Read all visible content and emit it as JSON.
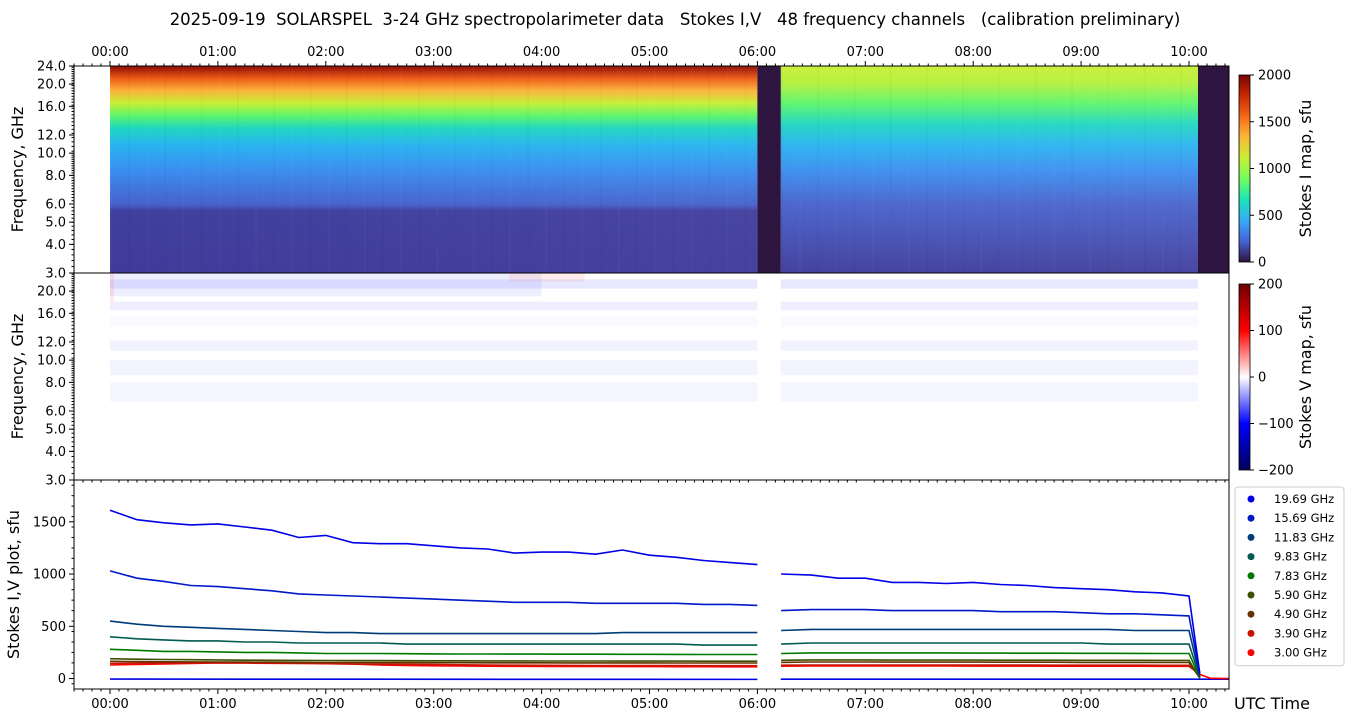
{
  "title": "2025-09-19  SOLARSPEL  3-24 GHz spectropolarimeter data   Stokes I,V   48 frequency channels   (calibration preliminary)",
  "x_axis_label": "UTC Time",
  "time_ticks": [
    "00:00",
    "01:00",
    "02:00",
    "03:00",
    "04:00",
    "05:00",
    "06:00",
    "07:00",
    "08:00",
    "09:00",
    "10:00"
  ],
  "palette": {
    "turbo": [
      "#30123b",
      "#4662d7",
      "#36aaf9",
      "#1ae4b6",
      "#72fe5e",
      "#c7ef34",
      "#fbb938",
      "#f56918",
      "#c92903",
      "#7a0403"
    ],
    "bwr": [
      "#00005a",
      "#0000ff",
      "#ffffff",
      "#ff0000",
      "#6e0000"
    ]
  },
  "chart_data": [
    {
      "type": "heatmap",
      "name": "Stokes I map",
      "ylabel": "Frequency, GHz",
      "xlim": [
        "23:40",
        "10:20"
      ],
      "ylim": [
        3.0,
        24.0
      ],
      "y_scale": "log",
      "y_ticks": [
        "3.0",
        "4.0",
        "5.0",
        "6.0",
        "8.0",
        "10.0",
        "12.0",
        "16.0",
        "20.0",
        "24.0"
      ],
      "colorbar": {
        "label": "Stokes I map, sfu",
        "range": [
          0,
          2000
        ],
        "ticks": [
          "0",
          "500",
          "1000",
          "1500",
          "2000"
        ],
        "colormap": "turbo"
      },
      "data_start": "00:00",
      "data_gaps": [
        [
          "06:00",
          "06:13"
        ],
        [
          "10:05",
          "10:20"
        ]
      ]
    },
    {
      "type": "heatmap",
      "name": "Stokes V map",
      "ylabel": "Frequency, GHz",
      "ylim": [
        3.0,
        24.0
      ],
      "y_scale": "log",
      "y_ticks": [
        "3.0",
        "4.0",
        "5.0",
        "6.0",
        "8.0",
        "10.0",
        "12.0",
        "16.0",
        "20.0"
      ],
      "colorbar": {
        "label": "Stokes V map, sfu",
        "range": [
          -200,
          200
        ],
        "ticks": [
          "−200",
          "−100",
          "0",
          "100",
          "200"
        ],
        "colormap": "bwr"
      }
    },
    {
      "type": "line",
      "name": "Stokes I,V plot",
      "ylabel": "Stokes I,V plot, sfu",
      "ylim": [
        -100,
        1900
      ],
      "y_ticks": [
        "0",
        "500",
        "1000",
        "1500"
      ],
      "legend": "right",
      "x_hours": [
        0.0,
        0.25,
        0.5,
        0.75,
        1.0,
        1.25,
        1.5,
        1.75,
        2.0,
        2.25,
        2.5,
        2.75,
        3.0,
        3.25,
        3.5,
        3.75,
        4.0,
        4.25,
        4.5,
        4.75,
        5.0,
        5.25,
        5.5,
        5.75,
        6.0,
        6.22,
        6.5,
        6.75,
        7.0,
        7.25,
        7.5,
        7.75,
        8.0,
        8.25,
        8.5,
        8.75,
        9.0,
        9.25,
        9.5,
        9.75,
        10.0,
        10.1
      ],
      "series": [
        {
          "name": "19.69 GHz",
          "color": "#0000e8",
          "values": [
            1610,
            1520,
            1490,
            1470,
            1480,
            1450,
            1420,
            1350,
            1370,
            1300,
            1290,
            1290,
            1270,
            1250,
            1240,
            1200,
            1210,
            1210,
            1190,
            1230,
            1180,
            1160,
            1130,
            1110,
            1090,
            1000,
            990,
            960,
            960,
            920,
            920,
            910,
            920,
            900,
            890,
            870,
            860,
            850,
            830,
            820,
            790,
            50
          ]
        },
        {
          "name": "15.69 GHz",
          "color": "#0019c8",
          "values": [
            1030,
            960,
            930,
            890,
            880,
            860,
            840,
            810,
            800,
            790,
            780,
            770,
            760,
            750,
            740,
            730,
            730,
            730,
            720,
            720,
            720,
            720,
            710,
            710,
            700,
            650,
            660,
            660,
            660,
            650,
            650,
            650,
            650,
            640,
            640,
            640,
            630,
            620,
            620,
            610,
            600,
            40
          ]
        },
        {
          "name": "11.83 GHz",
          "color": "#003c78",
          "values": [
            550,
            520,
            500,
            490,
            480,
            470,
            460,
            450,
            440,
            440,
            430,
            430,
            430,
            430,
            430,
            430,
            430,
            430,
            430,
            440,
            440,
            440,
            440,
            440,
            440,
            460,
            470,
            470,
            470,
            470,
            470,
            470,
            470,
            470,
            470,
            470,
            470,
            470,
            460,
            460,
            460,
            20
          ]
        },
        {
          "name": "9.83 GHz",
          "color": "#005a50",
          "values": [
            400,
            380,
            370,
            360,
            360,
            350,
            350,
            340,
            340,
            340,
            340,
            330,
            330,
            330,
            330,
            330,
            330,
            330,
            330,
            330,
            330,
            330,
            320,
            320,
            320,
            330,
            340,
            340,
            340,
            340,
            340,
            340,
            340,
            340,
            340,
            340,
            340,
            330,
            330,
            330,
            330,
            15
          ]
        },
        {
          "name": "7.83 GHz",
          "color": "#007800",
          "values": [
            280,
            270,
            260,
            260,
            255,
            250,
            250,
            245,
            240,
            240,
            240,
            238,
            236,
            235,
            235,
            234,
            234,
            233,
            233,
            232,
            232,
            231,
            230,
            230,
            230,
            240,
            245,
            245,
            245,
            245,
            245,
            245,
            244,
            244,
            243,
            243,
            242,
            242,
            241,
            240,
            240,
            10
          ]
        },
        {
          "name": "5.90 GHz",
          "color": "#3c5000",
          "values": [
            190,
            185,
            182,
            180,
            178,
            176,
            175,
            174,
            173,
            172,
            172,
            171,
            170,
            170,
            169,
            169,
            168,
            168,
            168,
            167,
            167,
            167,
            166,
            166,
            166,
            175,
            178,
            178,
            178,
            177,
            177,
            177,
            177,
            176,
            176,
            176,
            175,
            175,
            175,
            174,
            174,
            5
          ]
        },
        {
          "name": "4.90 GHz",
          "color": "#643200",
          "values": [
            165,
            162,
            160,
            159,
            158,
            157,
            156,
            155,
            154,
            154,
            153,
            153,
            152,
            152,
            151,
            151,
            151,
            150,
            150,
            150,
            150,
            149,
            149,
            149,
            149,
            155,
            158,
            158,
            158,
            157,
            157,
            157,
            157,
            156,
            156,
            156,
            155,
            155,
            155,
            154,
            154,
            5
          ]
        },
        {
          "name": "3.90 GHz",
          "color": "#c81400",
          "values": [
            145,
            148,
            150,
            152,
            155,
            152,
            150,
            148,
            146,
            140,
            138,
            136,
            134,
            132,
            130,
            128,
            127,
            126,
            125,
            125,
            124,
            124,
            123,
            123,
            123,
            128,
            130,
            130,
            130,
            130,
            130,
            129,
            129,
            129,
            129,
            128,
            128,
            128,
            128,
            127,
            127,
            30
          ]
        },
        {
          "name": "3.00 GHz",
          "color": "#ff0000",
          "values": [
            130,
            135,
            140,
            145,
            150,
            148,
            146,
            144,
            142,
            138,
            130,
            126,
            122,
            120,
            118,
            117,
            116,
            115,
            115,
            114,
            114,
            113,
            113,
            112,
            112,
            118,
            120,
            120,
            120,
            120,
            120,
            120,
            119,
            119,
            119,
            118,
            118,
            118,
            118,
            117,
            117,
            40
          ]
        }
      ]
    }
  ]
}
